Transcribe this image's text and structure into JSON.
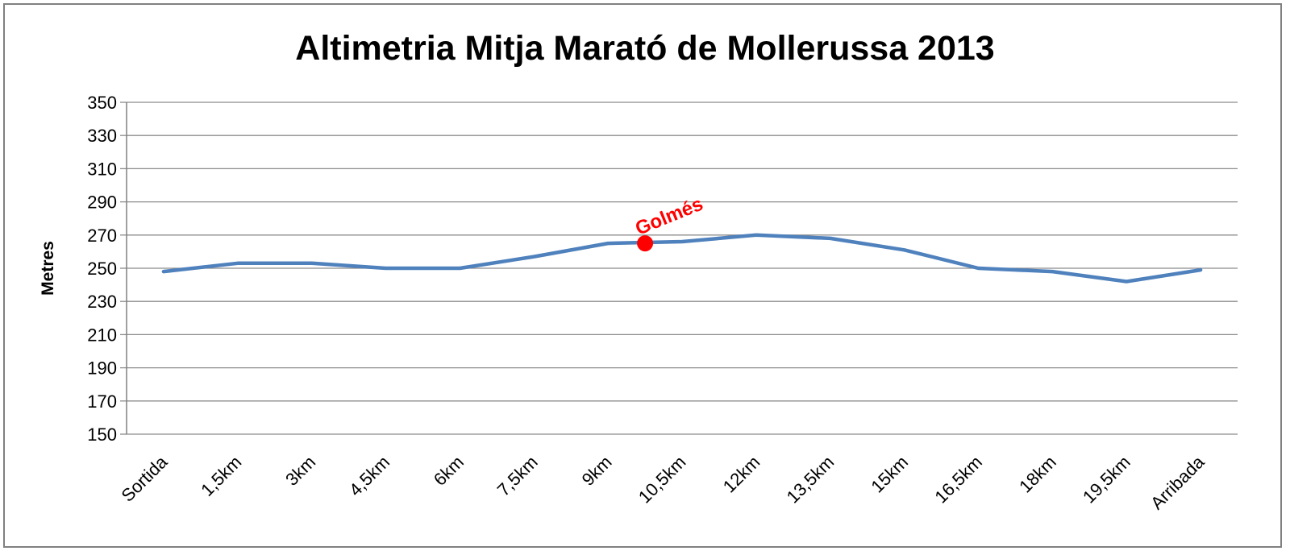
{
  "chart_data": {
    "type": "line",
    "title": "Altimetria Mitja Marató de Mollerussa 2013",
    "xlabel": "",
    "ylabel": "Metres",
    "categories": [
      "Sortida",
      "1,5km",
      "3km",
      "4,5km",
      "6km",
      "7,5km",
      "9km",
      "10,5km",
      "12km",
      "13,5km",
      "15km",
      "16,5km",
      "18km",
      "19,5km",
      "Arribada"
    ],
    "series": [
      {
        "values": [
          248,
          253,
          253,
          250,
          250,
          257,
          265,
          266,
          270,
          268,
          261,
          250,
          248,
          242,
          249
        ],
        "color": "#4f81bd"
      }
    ],
    "ylim": [
      150,
      350
    ],
    "yticks": [
      150,
      170,
      190,
      210,
      230,
      250,
      270,
      290,
      310,
      330,
      350
    ],
    "grid": "horizontal",
    "annotations": [
      {
        "label": "Golmés",
        "x_category_position": 6.5,
        "y": 265,
        "color": "#ff0000"
      }
    ]
  }
}
